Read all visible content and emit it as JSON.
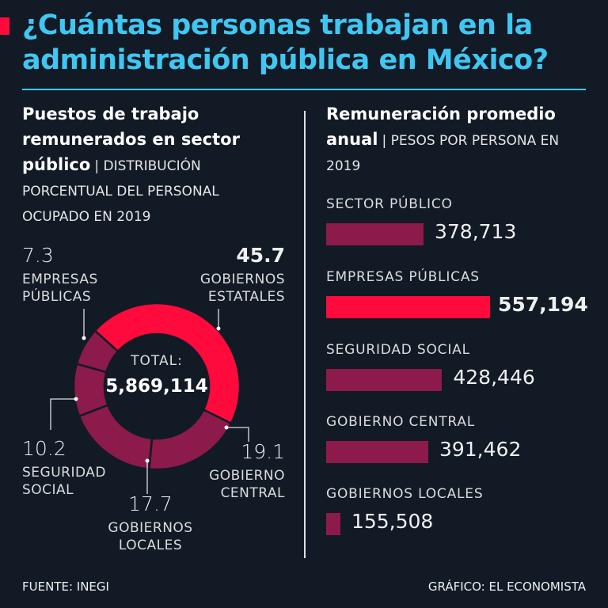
{
  "title": "¿Cuántas personas trabajan en la administración pública en México?",
  "colors": {
    "background": "#121a26",
    "accent": "#3fc7f2",
    "red": "#ff0a3c",
    "maroon": "#8c1a4a"
  },
  "left": {
    "heading": "Puestos de trabajo remunerados en sector público",
    "subtitle": "| DISTRIBUCIÓN PORCENTUAL DEL PERSONAL OCUPADO EN 2019",
    "total_label": "TOTAL:",
    "total_value": "5,869,114"
  },
  "right": {
    "heading": "Remuneración promedio anual",
    "subtitle": "| PESOS POR PERSONA EN 2019"
  },
  "chart_data": [
    {
      "type": "pie",
      "title": "Puestos de trabajo remunerados en sector público",
      "unit": "%",
      "slices": [
        {
          "label": "GOBIERNOS ESTATALES",
          "value": 45.7,
          "display": "45.7",
          "color": "#ff0a3c"
        },
        {
          "label": "GOBIERNO CENTRAL",
          "value": 19.1,
          "display": "19.1",
          "color": "#8c1a4a"
        },
        {
          "label": "GOBIERNOS LOCALES",
          "value": 17.7,
          "display": "17.7",
          "color": "#8c1a4a"
        },
        {
          "label": "SEGURIDAD SOCIAL",
          "value": 10.2,
          "display": "10.2",
          "color": "#8c1a4a"
        },
        {
          "label": "EMPRESAS PÚBLICAS",
          "value": 7.3,
          "display": "7.3",
          "color": "#8c1a4a"
        }
      ]
    },
    {
      "type": "bar",
      "title": "Remuneración promedio anual",
      "unit": "pesos por persona",
      "categories": [
        "SECTOR PÚBLICO",
        "EMPRESAS PÚBLICAS",
        "SEGURIDAD SOCIAL",
        "GOBIERNO CENTRAL",
        "GOBIERNOS LOCALES"
      ],
      "values": [
        378713,
        557194,
        428446,
        391462,
        155508
      ],
      "labels": [
        "378,713",
        "557,194",
        "428,446",
        "391,462",
        "155,508"
      ],
      "colors": [
        "#8c1a4a",
        "#ff0a3c",
        "#8c1a4a",
        "#8c1a4a",
        "#8c1a4a"
      ]
    }
  ],
  "footer": {
    "source": "FUENTE: INEGI",
    "credit": "GRÁFICO: EL ECONOMISTA"
  }
}
